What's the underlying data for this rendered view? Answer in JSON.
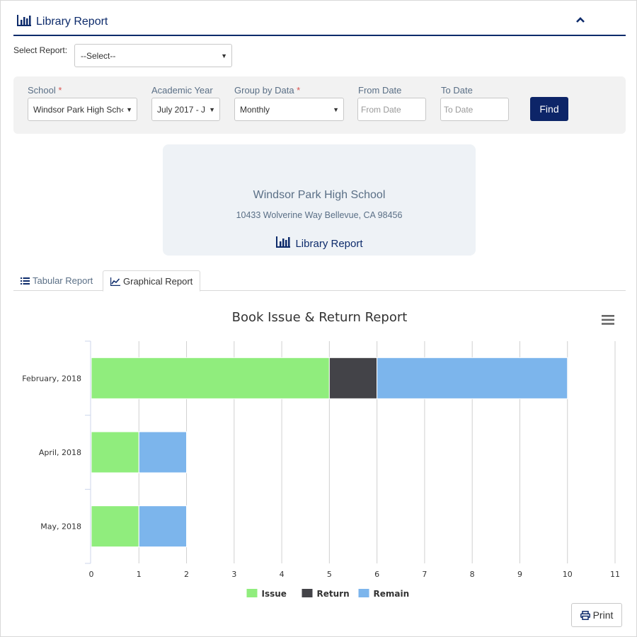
{
  "header": {
    "title": "Library Report"
  },
  "select_report": {
    "label": "Select Report:",
    "value": "--Select--"
  },
  "filters": {
    "school": {
      "label": "School",
      "required": "*",
      "value": "Windsor Park High Sch‹"
    },
    "academic_year": {
      "label": "Academic Year",
      "value": "July 2017 - J"
    },
    "group_by": {
      "label": "Group by Data",
      "required": "*",
      "value": "Monthly"
    },
    "from_date": {
      "label": "From Date",
      "placeholder": "From Date"
    },
    "to_date": {
      "label": "To Date",
      "placeholder": "To Date"
    },
    "find_label": "Find"
  },
  "school_card": {
    "name": "Windsor Park High School",
    "address": "10433 Wolverine Way Bellevue, CA 98456",
    "report_title": "Library Report"
  },
  "tabs": [
    {
      "label": "Tabular Report",
      "icon": "list-icon",
      "active": false
    },
    {
      "label": "Graphical Report",
      "icon": "line-chart-icon",
      "active": true
    }
  ],
  "chart_data": {
    "type": "bar",
    "orientation": "horizontal",
    "stacked": true,
    "title": "Book Issue & Return Report",
    "categories": [
      "February, 2018",
      "April, 2018",
      "May, 2018"
    ],
    "series": [
      {
        "name": "Issue",
        "values": [
          5,
          1,
          1
        ],
        "color": "#90ed7d"
      },
      {
        "name": "Return",
        "values": [
          1,
          0,
          0
        ],
        "color": "#434348"
      },
      {
        "name": "Remain",
        "values": [
          4,
          1,
          1
        ],
        "color": "#7cb5ec"
      }
    ],
    "xlim": [
      0,
      11
    ],
    "xticks": [
      0,
      1,
      2,
      3,
      4,
      5,
      6,
      7,
      8,
      9,
      10,
      11
    ],
    "grid": true,
    "legend": "bottom-center"
  },
  "print_label": "Print",
  "colors": {
    "brand": "#0d2b6b",
    "button": "#0d2568",
    "label": "#5a6f86",
    "required": "#d9534f"
  }
}
